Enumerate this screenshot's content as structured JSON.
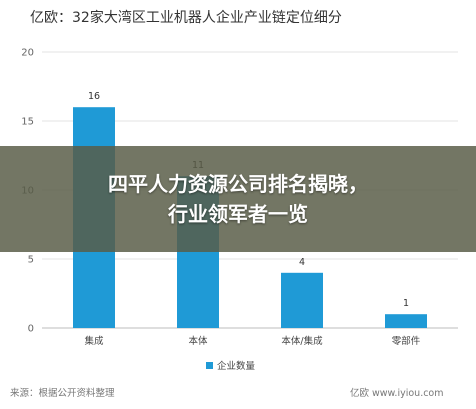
{
  "chart_data": {
    "type": "bar",
    "title": "亿欧：32家大湾区工业机器人企业产业链定位细分",
    "categories": [
      "集成",
      "本体",
      "本体/集成",
      "零部件"
    ],
    "series": [
      {
        "name": "企业数量",
        "values": [
          16,
          11,
          4,
          1
        ],
        "color": "#1f9ad6"
      }
    ],
    "ylim": [
      0,
      20
    ],
    "yticks": [
      "0",
      "5",
      "10",
      "15",
      "20"
    ],
    "grid": true,
    "legend_position": "bottom"
  },
  "banner": {
    "line1": "四平人力资源公司排名揭晓，",
    "line2": "行业领军者一览"
  },
  "footer": {
    "source": "来源：根据公开资料整理",
    "brand": "亿欧",
    "url": "www.iyiou.com"
  }
}
